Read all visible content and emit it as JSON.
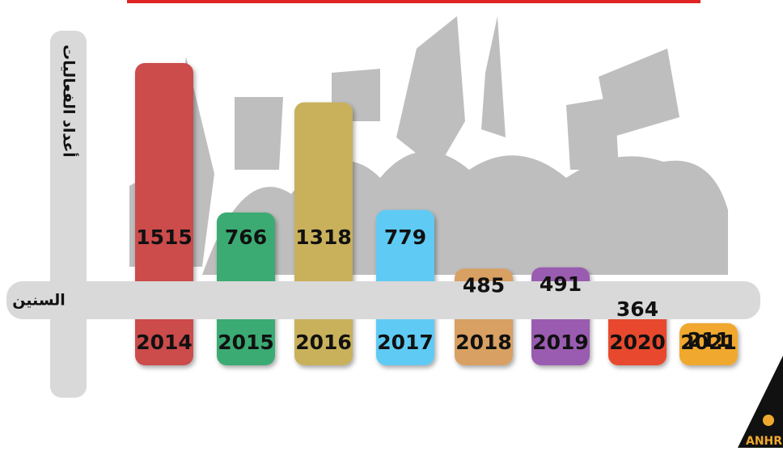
{
  "chart_data": {
    "type": "bar",
    "y_axis_label": "أعداد الفعاليات",
    "x_axis_label": "السنين",
    "categories": [
      "2014",
      "2015",
      "2016",
      "2017",
      "2018",
      "2019",
      "2020",
      "2021"
    ],
    "values": [
      1515,
      766,
      1318,
      779,
      485,
      491,
      364,
      211
    ],
    "colors": [
      "#cc4b4b",
      "#3aab73",
      "#c9b15c",
      "#5ecbf4",
      "#d8a062",
      "#9a5cb0",
      "#e84a2f",
      "#f0a92f"
    ]
  },
  "logo_text": "ANHR"
}
